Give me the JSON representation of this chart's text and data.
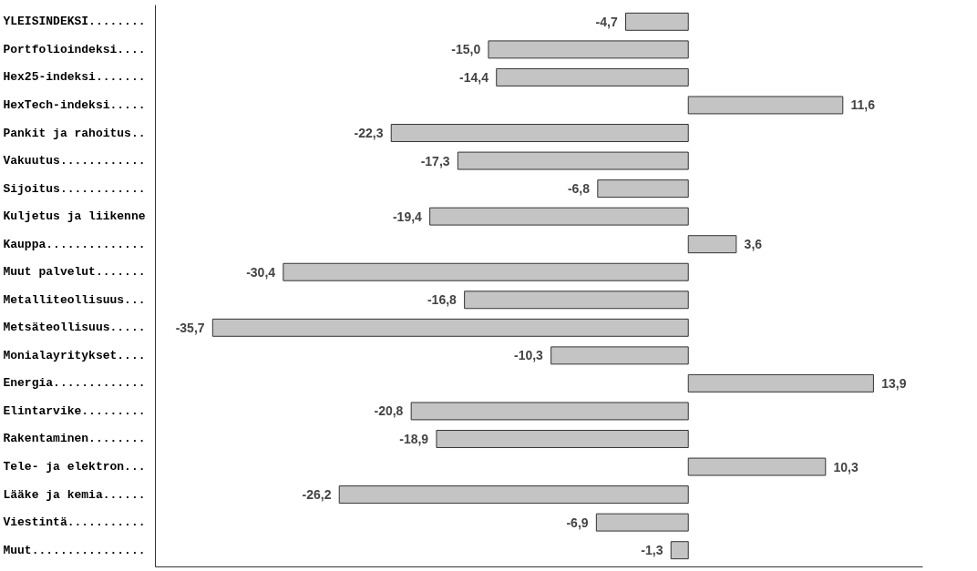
{
  "chart_data": {
    "type": "bar",
    "orientation": "horizontal",
    "categories": [
      "YLEISINDEKSI........",
      "Portfolioindeksi....",
      "Hex25-indeksi.......",
      "HexTech-indeksi.....",
      "Pankit ja rahoitus..",
      "Vakuutus............",
      "Sijoitus............",
      "Kuljetus ja liikenne",
      "Kauppa..............",
      "Muut palvelut.......",
      "Metalliteollisuus...",
      "Metsäteollisuus.....",
      "Monialayritykset....",
      "Energia.............",
      "Elintarvike.........",
      "Rakentaminen........",
      "Tele- ja elektron...",
      "Lääke ja kemia......",
      "Viestintä...........",
      "Muut................"
    ],
    "values": [
      -4.7,
      -15.0,
      -14.4,
      11.6,
      -22.3,
      -17.3,
      -6.8,
      -19.4,
      3.6,
      -30.4,
      -16.8,
      -35.7,
      -10.3,
      13.9,
      -20.8,
      -18.9,
      10.3,
      -26.2,
      -6.9,
      -1.3
    ],
    "value_labels": [
      "-4,7",
      "-15,0",
      "-14,4",
      "11,6",
      "-22,3",
      "-17,3",
      "-6,8",
      "-19,4",
      "3,6",
      "-30,4",
      "-16,8",
      "-35,7",
      "-10,3",
      "13,9",
      "-20,8",
      "-18,9",
      "10,3",
      "-26,2",
      "-6,9",
      "-1,3"
    ],
    "color": "#c4c4c4",
    "xlim": [
      -40,
      17.6
    ],
    "tick_labels": "y",
    "grid": false
  }
}
